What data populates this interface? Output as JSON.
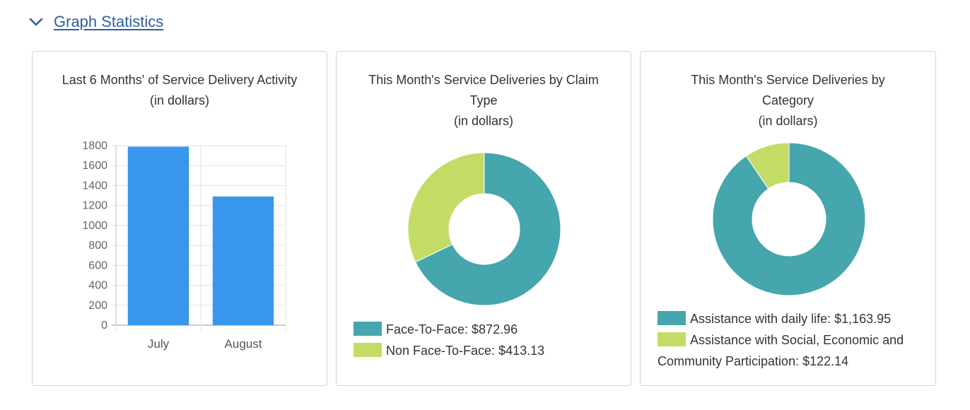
{
  "section": {
    "title": "Graph Statistics",
    "expanded": true,
    "icon": "chevron-down-icon"
  },
  "cards": [
    {
      "title_lines": [
        "Last 6 Months' of Service Delivery Activity",
        "(in dollars)"
      ]
    },
    {
      "title_lines": [
        "This Month's Service Deliveries by Claim",
        "Type",
        "(in dollars)"
      ],
      "legend": [
        {
          "label": "Face-To-Face: $872.96",
          "color": "#45a6ad"
        },
        {
          "label": "Non Face-To-Face: $413.13",
          "color": "#c3dc66"
        }
      ]
    },
    {
      "title_lines": [
        "This Month's Service Deliveries by",
        "Category",
        "(in dollars)"
      ],
      "legend": [
        {
          "label": "Assistance with daily life: $1,163.95",
          "color": "#45a6ad"
        },
        {
          "label": "Assistance with Social, Economic and Community Participation: $122.14",
          "color": "#c3dc66"
        }
      ]
    }
  ],
  "chart_data": [
    {
      "type": "bar",
      "title": "Last 6 Months' of Service Delivery Activity (in dollars)",
      "categories": [
        "July",
        "August"
      ],
      "values": [
        1790,
        1290
      ],
      "ylim": [
        0,
        1800
      ],
      "yticks": [
        0,
        200,
        400,
        600,
        800,
        1000,
        1200,
        1400,
        1600,
        1800
      ],
      "color": "#3896ec",
      "grid": true
    },
    {
      "type": "pie",
      "title": "This Month's Service Deliveries by Claim Type (in dollars)",
      "donut": true,
      "labels": [
        "Face-To-Face",
        "Non Face-To-Face"
      ],
      "values": [
        872.96,
        413.13
      ],
      "colors": [
        "#45a6ad",
        "#c3dc66"
      ],
      "legend_position": "bottom"
    },
    {
      "type": "pie",
      "title": "This Month's Service Deliveries by Category (in dollars)",
      "donut": true,
      "labels": [
        "Assistance with daily life",
        "Assistance with Social, Economic and Community Participation"
      ],
      "values": [
        1163.95,
        122.14
      ],
      "colors": [
        "#45a6ad",
        "#c3dc66"
      ],
      "legend_position": "bottom"
    }
  ]
}
